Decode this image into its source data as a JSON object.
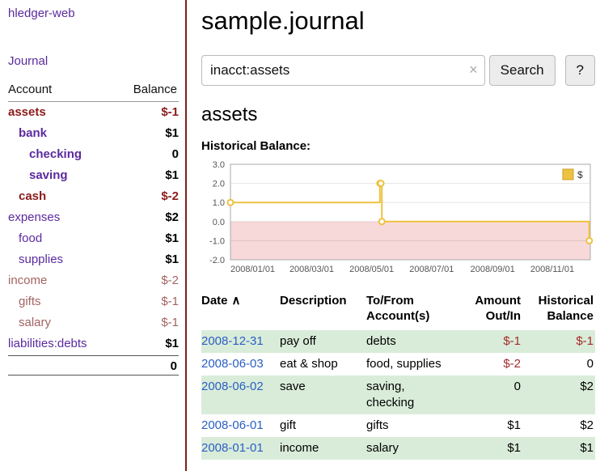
{
  "app": {
    "brand": "hledger-web",
    "nav_journal": "Journal"
  },
  "sidebar": {
    "col_account": "Account",
    "col_balance": "Balance",
    "accounts": [
      {
        "name": "assets",
        "balance": "$-1",
        "level": 0,
        "active": true,
        "negative": true
      },
      {
        "name": "bank",
        "balance": "$1",
        "level": 1,
        "active": true,
        "negative": false
      },
      {
        "name": "checking",
        "balance": "0",
        "level": 2,
        "active": true,
        "negative": false
      },
      {
        "name": "saving",
        "balance": "$1",
        "level": 2,
        "active": true,
        "negative": false
      },
      {
        "name": "cash",
        "balance": "$-2",
        "level": 1,
        "active": true,
        "negative": true
      },
      {
        "name": "expenses",
        "balance": "$2",
        "level": 0,
        "active": false,
        "negative": false
      },
      {
        "name": "food",
        "balance": "$1",
        "level": 1,
        "active": false,
        "negative": false
      },
      {
        "name": "supplies",
        "balance": "$1",
        "level": 1,
        "active": false,
        "negative": false
      },
      {
        "name": "income",
        "balance": "$-2",
        "level": 0,
        "active": false,
        "negative": true
      },
      {
        "name": "gifts",
        "balance": "$-1",
        "level": 1,
        "active": false,
        "negative": true
      },
      {
        "name": "salary",
        "balance": "$-1",
        "level": 1,
        "active": false,
        "negative": true
      },
      {
        "name": "liabilities:debts",
        "balance": "$1",
        "level": 0,
        "active": false,
        "negative": false
      }
    ],
    "total": "0"
  },
  "main": {
    "title": "sample.journal",
    "search": {
      "value": "inacct:assets",
      "clear_icon": "×",
      "button": "Search",
      "help": "?"
    },
    "heading": "assets"
  },
  "chart_data": {
    "type": "line",
    "step": true,
    "title": "Historical Balance:",
    "legend": [
      {
        "label": "$",
        "color": "#edc240"
      }
    ],
    "ylim": [
      -2,
      3
    ],
    "y_ticks": [
      3,
      2,
      1,
      0,
      -1,
      -2
    ],
    "x_ticks": [
      "2008/01/01",
      "2008/03/01",
      "2008/05/01",
      "2008/07/01",
      "2008/09/01",
      "2008/11/01"
    ],
    "x_range": [
      "2008-01-01",
      "2009-01-01"
    ],
    "series": [
      {
        "name": "$",
        "color": "#edc240",
        "points": [
          {
            "date": "2008-01-01",
            "value": 1
          },
          {
            "date": "2008-06-01",
            "value": 2
          },
          {
            "date": "2008-06-02",
            "value": 2
          },
          {
            "date": "2008-06-03",
            "value": 0
          },
          {
            "date": "2008-12-31",
            "value": -1
          }
        ]
      }
    ],
    "negative_region_shaded": true
  },
  "table": {
    "headers": [
      {
        "label": "Date",
        "sort_icon": "∧",
        "align": "left"
      },
      {
        "label": "Description",
        "align": "left"
      },
      {
        "label": "To/From Account(s)",
        "align": "left"
      },
      {
        "label": "Amount Out/In",
        "align": "right"
      },
      {
        "label": "Historical Balance",
        "align": "right"
      }
    ],
    "rows": [
      {
        "date": "2008-12-31",
        "description": "pay off",
        "accounts": "debts",
        "amount": "$-1",
        "balance": "$-1"
      },
      {
        "date": "2008-06-03",
        "description": "eat & shop",
        "accounts": "food, supplies",
        "amount": "$-2",
        "balance": "0"
      },
      {
        "date": "2008-06-02",
        "description": "save",
        "accounts": "saving, checking",
        "amount": "0",
        "balance": "$2"
      },
      {
        "date": "2008-06-01",
        "description": "gift",
        "accounts": "gifts",
        "amount": "$1",
        "balance": "$2"
      },
      {
        "date": "2008-01-01",
        "description": "income",
        "accounts": "salary",
        "amount": "$1",
        "balance": "$1"
      }
    ]
  },
  "colors": {
    "accent_purple": "#5b2a9e",
    "negative_strong": "#8b1c1c",
    "negative_soft": "#a36363",
    "link_blue": "#2a5fc4",
    "row_green": "#d9ecd9",
    "series_gold": "#edc240",
    "negative_zone_pink": "#f8d9d9",
    "grid_border": "#aaaaaa"
  }
}
